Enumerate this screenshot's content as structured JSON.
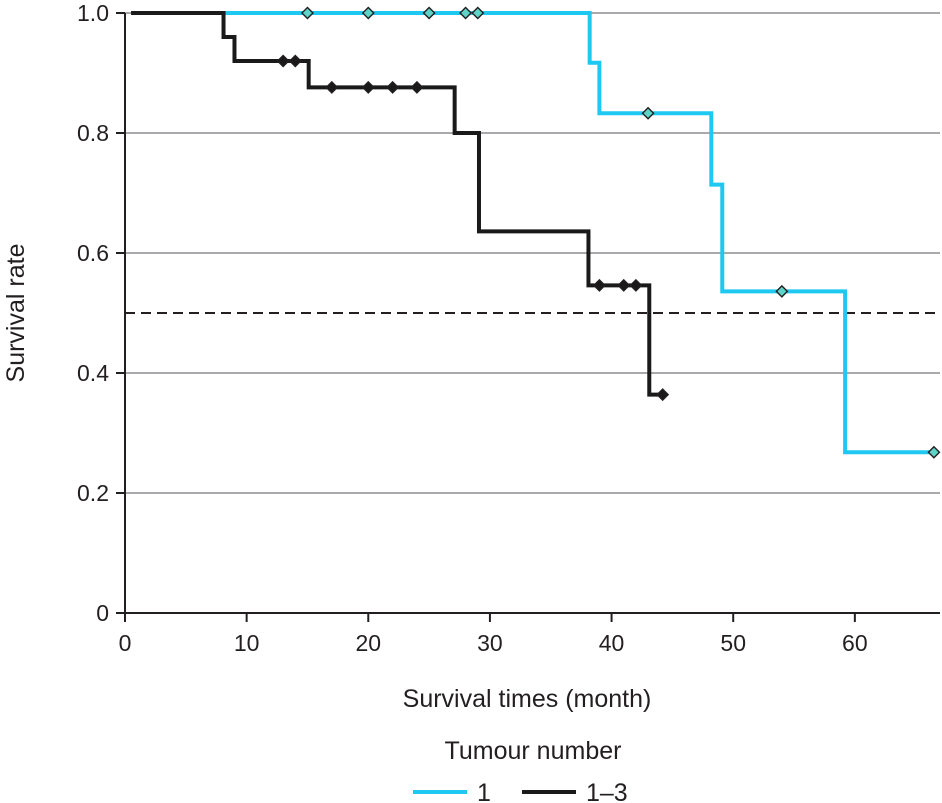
{
  "chart_data": {
    "type": "line",
    "subtype": "kaplan-meier-step",
    "title": "",
    "xlabel": "Survival times (month)",
    "ylabel": "Survival rate",
    "xlim": [
      0,
      67
    ],
    "ylim": [
      0,
      1
    ],
    "x_ticks": [
      0,
      10,
      20,
      30,
      40,
      50,
      60
    ],
    "x_tick_labels": [
      "0",
      "10",
      "20",
      "30",
      "40",
      "50",
      "60"
    ],
    "y_ticks": [
      0,
      0.2,
      0.4,
      0.6,
      0.8,
      1.0
    ],
    "y_tick_labels": [
      "0",
      "0.2",
      "0.4",
      "0.6",
      "0.8",
      "1.0"
    ],
    "horizontal_gridlines": true,
    "reference_line": {
      "y": 0.5,
      "style": "dashed"
    },
    "legend": {
      "title": "Tumour number",
      "placement": "bottom"
    },
    "series": [
      {
        "name": "1",
        "color": "#1ec8f0",
        "marker_fill": "#5fd3c8",
        "steps": [
          [
            8,
            1.0
          ],
          [
            38.2,
            0.917
          ],
          [
            39.0,
            0.833
          ],
          [
            48.2,
            0.714
          ],
          [
            49.1,
            0.536
          ],
          [
            59.2,
            0.268
          ],
          [
            66.5,
            0.268
          ]
        ],
        "censored": [
          [
            15,
            1.0
          ],
          [
            20,
            1.0
          ],
          [
            25,
            1.0
          ],
          [
            28,
            1.0
          ],
          [
            29,
            1.0
          ],
          [
            43,
            0.833
          ],
          [
            54,
            0.536
          ],
          [
            66.5,
            0.268
          ]
        ]
      },
      {
        "name": "1–3",
        "color": "#1a1a1a",
        "marker_fill": "#1a1a1a",
        "steps": [
          [
            0.5,
            1.0
          ],
          [
            8.1,
            0.96
          ],
          [
            9.0,
            0.92
          ],
          [
            15.1,
            0.876
          ],
          [
            27.1,
            0.8
          ],
          [
            29.1,
            0.636
          ],
          [
            38.1,
            0.546
          ],
          [
            43.1,
            0.364
          ],
          [
            44.2,
            0.364
          ]
        ],
        "censored": [
          [
            13,
            0.92
          ],
          [
            14,
            0.92
          ],
          [
            17,
            0.876
          ],
          [
            20,
            0.876
          ],
          [
            22,
            0.876
          ],
          [
            24,
            0.876
          ],
          [
            39,
            0.546
          ],
          [
            41,
            0.546
          ],
          [
            42,
            0.546
          ],
          [
            44.2,
            0.364
          ]
        ]
      }
    ]
  }
}
